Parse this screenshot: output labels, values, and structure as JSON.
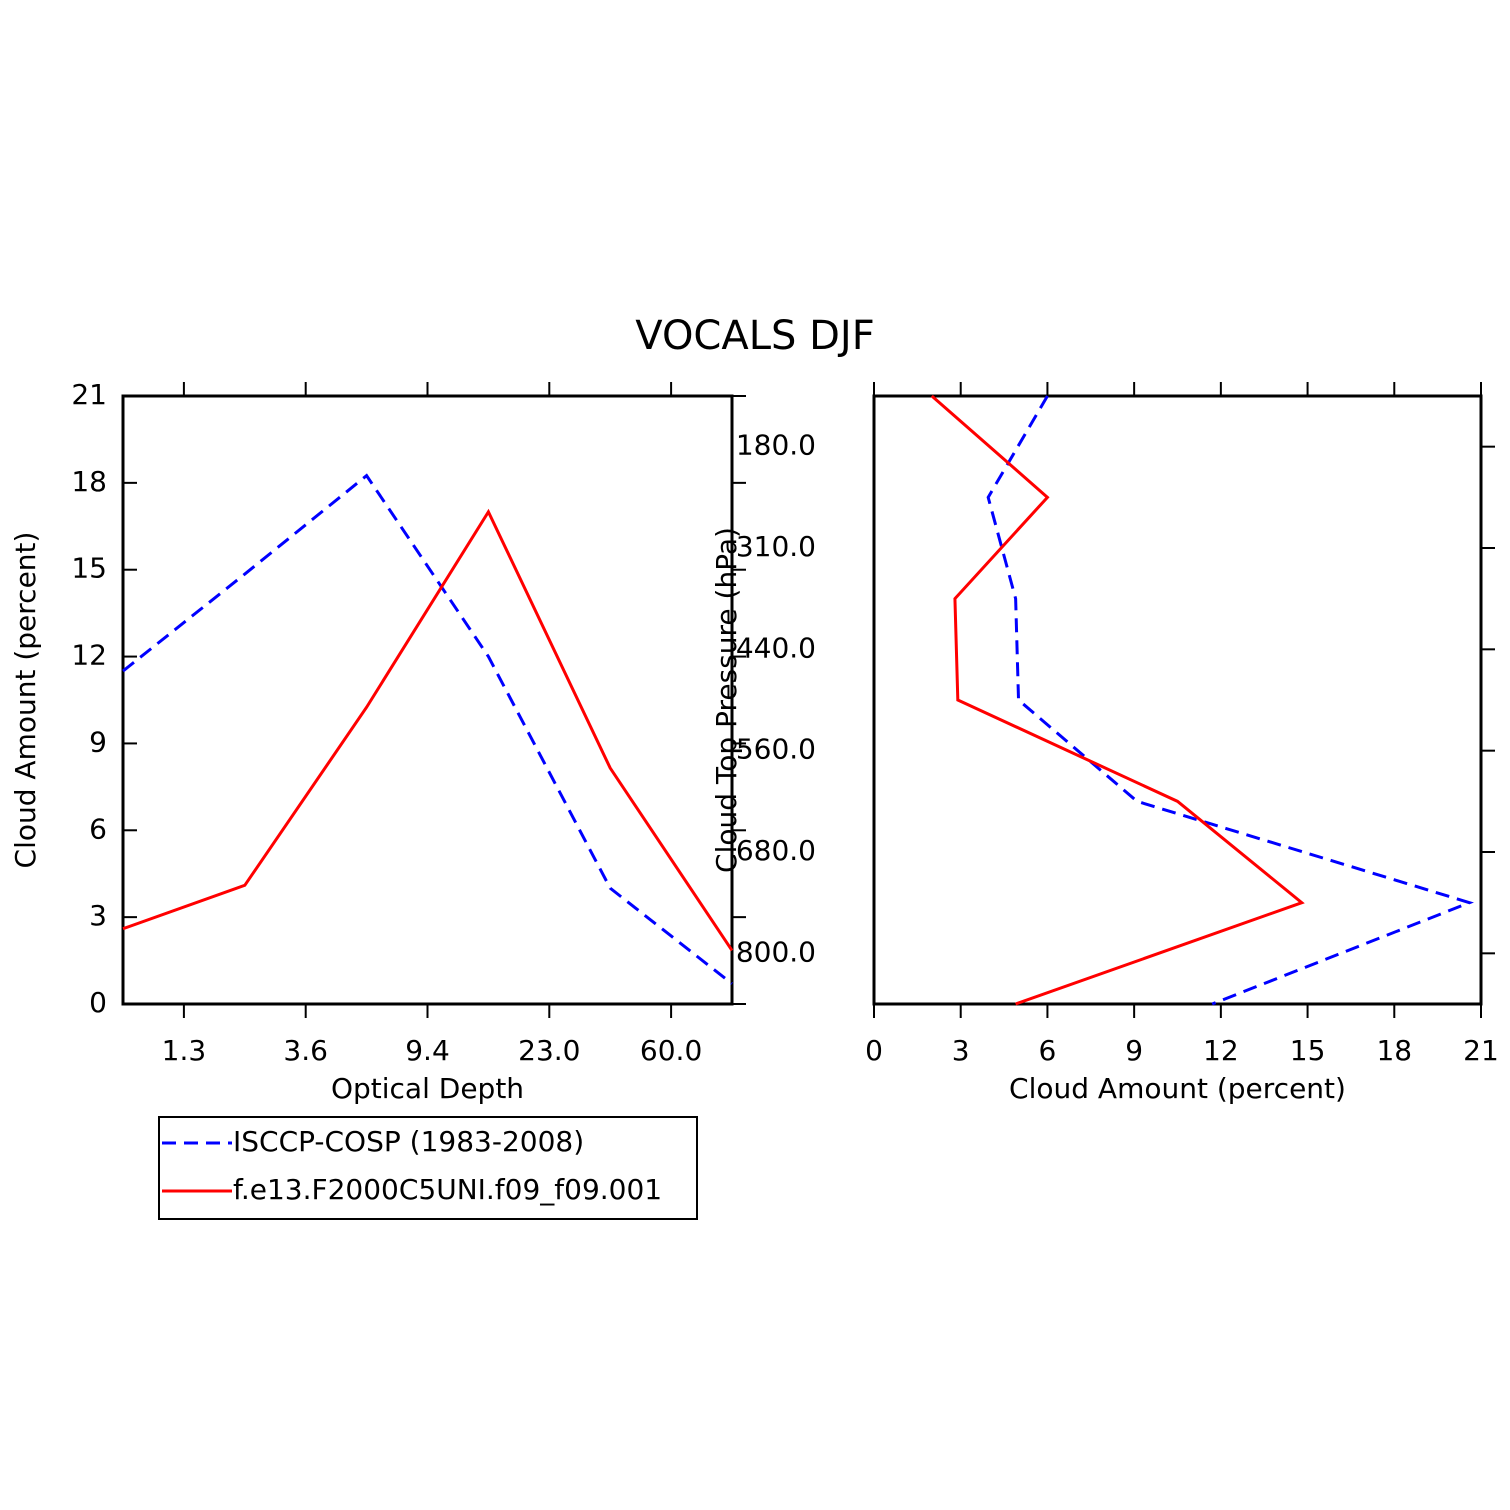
{
  "title": "VOCALS DJF",
  "chart_data": [
    {
      "type": "line",
      "orientation": "vertical",
      "xlabel": "Optical Depth",
      "ylabel": "Cloud Amount (percent)",
      "x": [
        0,
        1,
        2,
        3,
        4,
        5
      ],
      "xlim": [
        0,
        5
      ],
      "xticks": [
        {
          "value": 0.5,
          "label": "1.3"
        },
        {
          "value": 1.5,
          "label": "3.6"
        },
        {
          "value": 2.5,
          "label": "9.4"
        },
        {
          "value": 3.5,
          "label": "23.0"
        },
        {
          "value": 4.5,
          "label": "60.0"
        }
      ],
      "ylim": [
        0,
        21
      ],
      "yticks": [
        0,
        3,
        6,
        9,
        12,
        15,
        18,
        21
      ],
      "series": [
        {
          "name": "ISCCP-COSP (1983-2008)",
          "color": "#0000ff",
          "dash": true,
          "values": [
            11.5,
            14.85,
            18.25,
            12.0,
            4.0,
            0.7
          ]
        },
        {
          "name": "f.e13.F2000C5UNI.f09_f09.001",
          "color": "#ff0000",
          "dash": false,
          "values": [
            2.6,
            4.1,
            10.25,
            17.0,
            8.15,
            1.85
          ]
        }
      ]
    },
    {
      "type": "line",
      "orientation": "horizontal",
      "xlabel": "Cloud Amount (percent)",
      "ylabel": "Cloud Top Pressure (hPa)",
      "y": [
        0,
        1,
        2,
        3,
        4,
        5,
        6
      ],
      "ylim": [
        6,
        0
      ],
      "yticks": [
        {
          "value": 0.5,
          "label": "180.0"
        },
        {
          "value": 1.5,
          "label": "310.0"
        },
        {
          "value": 2.5,
          "label": "440.0"
        },
        {
          "value": 3.5,
          "label": "560.0"
        },
        {
          "value": 4.5,
          "label": "680.0"
        },
        {
          "value": 5.5,
          "label": "800.0"
        }
      ],
      "xlim": [
        0,
        21
      ],
      "xticks": [
        0,
        3,
        6,
        9,
        12,
        15,
        18,
        21
      ],
      "series": [
        {
          "name": "ISCCP-COSP (1983-2008)",
          "color": "#0000ff",
          "dash": true,
          "values": [
            6.0,
            3.95,
            4.9,
            5.0,
            9.1,
            20.6,
            11.7
          ]
        },
        {
          "name": "f.e13.F2000C5UNI.f09_f09.001",
          "color": "#ff0000",
          "dash": false,
          "values": [
            2.0,
            6.0,
            2.8,
            2.9,
            10.5,
            14.8,
            4.9
          ]
        }
      ]
    }
  ]
}
